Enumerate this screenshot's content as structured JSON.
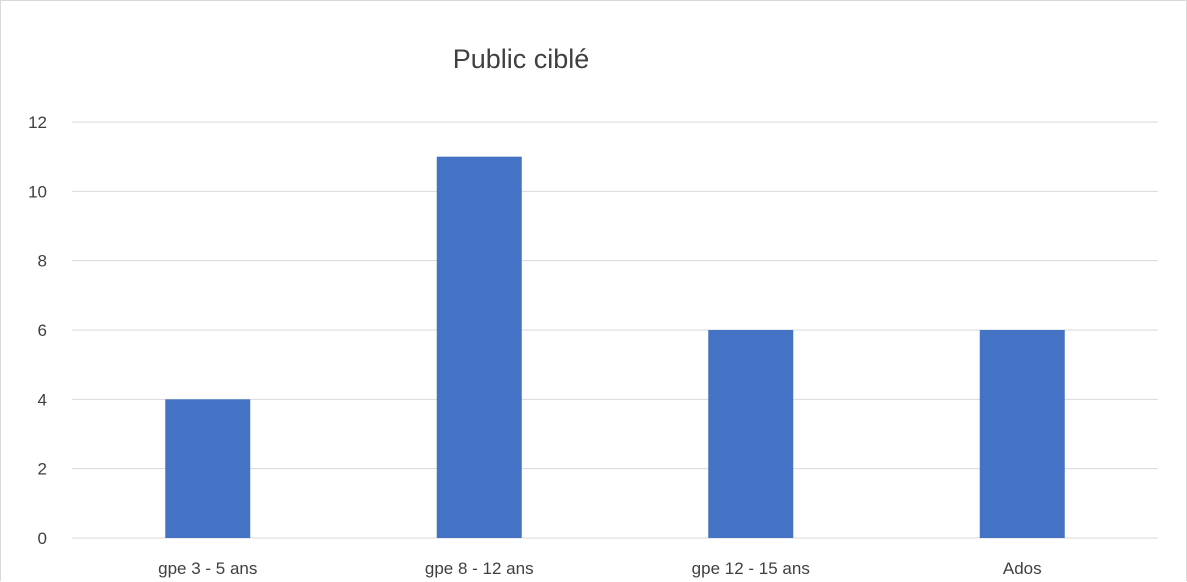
{
  "chart_data": {
    "type": "bar",
    "title": "Public ciblé",
    "xlabel": "",
    "ylabel": "",
    "categories": [
      "gpe 3 - 5 ans",
      "gpe 8 - 12 ans",
      "gpe 12 - 15 ans",
      "Ados"
    ],
    "values": [
      4,
      11,
      6,
      6
    ],
    "ylim": [
      0,
      12
    ],
    "yticks": [
      0,
      2,
      4,
      6,
      8,
      10,
      12
    ],
    "grid": true,
    "legend": "none",
    "colors": {
      "bar": "#4472c4",
      "grid": "#d9d9d9",
      "text": "#404040"
    }
  }
}
